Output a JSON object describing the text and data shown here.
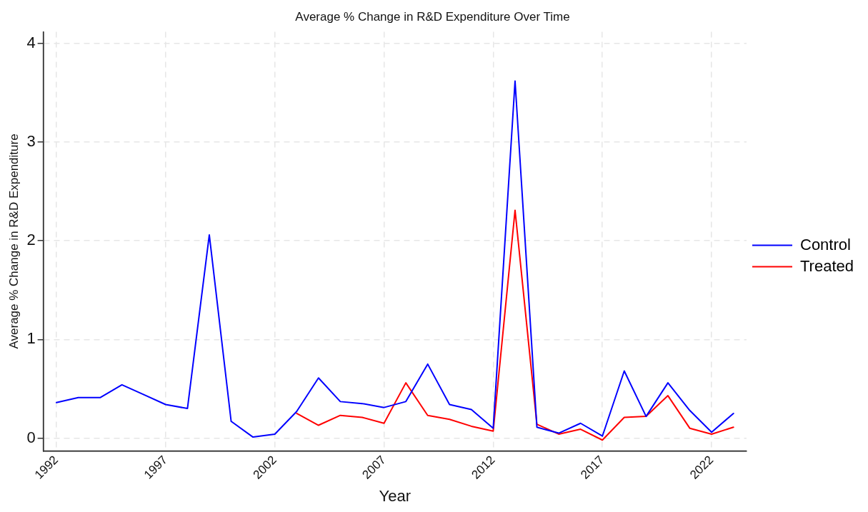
{
  "chart_data": {
    "type": "line",
    "title": "Average % Change in R&D Expenditure Over Time",
    "xlabel": "Year",
    "ylabel": "Average % Change in R&D Expenditure",
    "x": [
      1992,
      1993,
      1994,
      1995,
      1996,
      1997,
      1998,
      1999,
      2000,
      2001,
      2002,
      2003,
      2004,
      2005,
      2006,
      2007,
      2008,
      2009,
      2010,
      2011,
      2012,
      2013,
      2014,
      2015,
      2016,
      2017,
      2018,
      2019,
      2020,
      2021,
      2022,
      2023
    ],
    "series": [
      {
        "name": "Control",
        "color": "#0000ff",
        "values": [
          0.36,
          0.41,
          0.41,
          0.54,
          0.44,
          0.34,
          0.3,
          2.06,
          0.17,
          0.01,
          0.04,
          0.27,
          0.61,
          0.37,
          0.35,
          0.31,
          0.37,
          0.75,
          0.34,
          0.29,
          0.1,
          3.62,
          0.11,
          0.05,
          0.15,
          0.02,
          0.68,
          0.22,
          0.56,
          0.28,
          0.06,
          0.25
        ]
      },
      {
        "name": "Treated",
        "color": "#ff0000",
        "x": [
          2003,
          2004,
          2005,
          2006,
          2007,
          2008,
          2009,
          2010,
          2011,
          2012,
          2013,
          2014,
          2015,
          2016,
          2017,
          2018,
          2019,
          2020,
          2021,
          2022,
          2023
        ],
        "values": [
          0.25,
          0.13,
          0.23,
          0.21,
          0.15,
          0.56,
          0.23,
          0.19,
          0.12,
          0.07,
          2.31,
          0.14,
          0.04,
          0.09,
          -0.02,
          0.21,
          0.22,
          0.43,
          0.1,
          0.04,
          0.11
        ]
      }
    ],
    "xlim": [
      1991.4,
      2023.6
    ],
    "xticks": [
      1992,
      1997,
      2002,
      2007,
      2012,
      2017,
      2022
    ],
    "ylim": [
      -0.13,
      4.12
    ],
    "yticks": [
      0,
      1,
      2,
      3,
      4
    ],
    "grid": true,
    "legend": "right",
    "marker": "none",
    "line_style": "solid"
  }
}
